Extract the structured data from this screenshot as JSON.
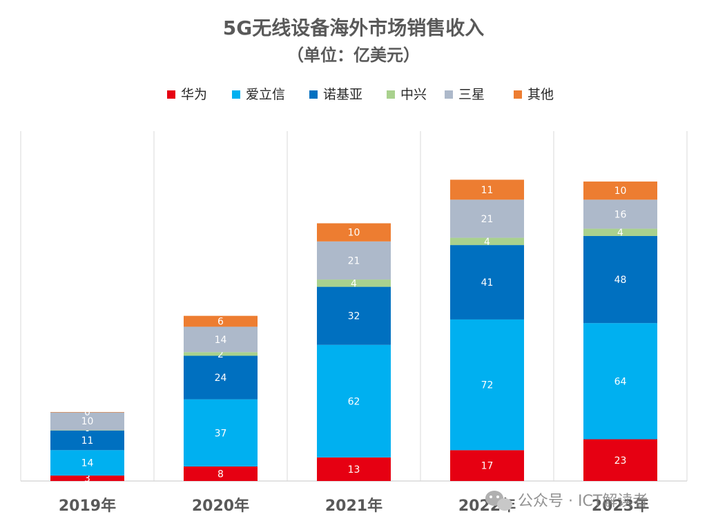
{
  "chart_data": {
    "type": "bar",
    "stacked": true,
    "title": "5G无线设备海外市场销售收入",
    "subtitle": "（单位：亿美元）",
    "categories": [
      "2019年",
      "2020年",
      "2021年",
      "2022年",
      "2023年"
    ],
    "series": [
      {
        "name": "华为",
        "color": "#e60012",
        "values": [
          3,
          8,
          13,
          17,
          23
        ]
      },
      {
        "name": "爱立信",
        "color": "#00b0f0",
        "values": [
          14,
          37,
          62,
          72,
          64
        ]
      },
      {
        "name": "诺基亚",
        "color": "#0070c0",
        "values": [
          11,
          24,
          32,
          41,
          48
        ]
      },
      {
        "name": "中兴",
        "color": "#a9d18e",
        "values": [
          0,
          2,
          4,
          4,
          4
        ]
      },
      {
        "name": "三星",
        "color": "#adb9ca",
        "values": [
          10,
          14,
          21,
          21,
          16
        ]
      },
      {
        "name": "其他",
        "color": "#ed7d31",
        "values": [
          0,
          6,
          10,
          11,
          10
        ]
      }
    ],
    "data_labels": [
      [
        "3",
        "8",
        "13",
        "17",
        "23"
      ],
      [
        "14",
        "37",
        "62",
        "72",
        "64"
      ],
      [
        "11",
        "24",
        "32",
        "41",
        "48"
      ],
      [
        "-",
        "2",
        "4",
        "4",
        "4"
      ],
      [
        "10",
        "14",
        "21",
        "21",
        "16"
      ],
      [
        "0",
        "6",
        "10",
        "11",
        "10"
      ]
    ],
    "ylim": [
      0,
      165
    ],
    "legend": "top",
    "grid": false
  },
  "watermark": {
    "icon": "wechat-icon",
    "text": "公众号 · ICT解读者"
  }
}
